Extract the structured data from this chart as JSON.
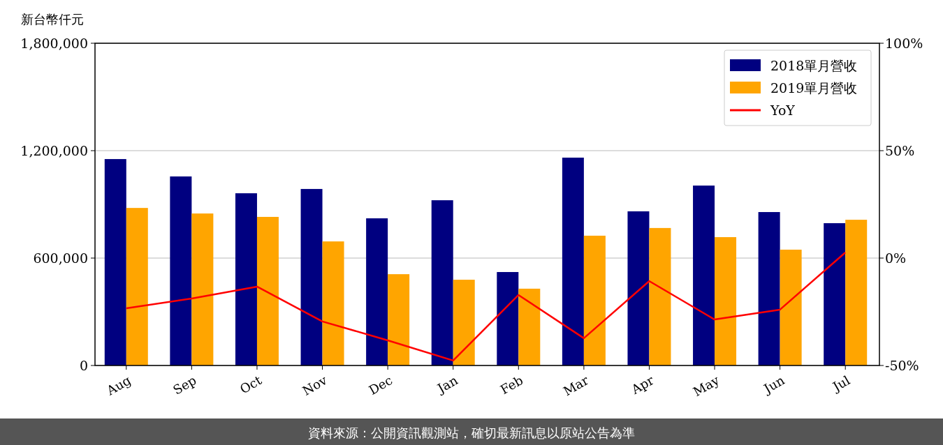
{
  "chart_data": {
    "type": "bar",
    "ylabel": "新台幣仟元",
    "categories": [
      "Aug",
      "Sep",
      "Oct",
      "Nov",
      "Dec",
      "Jan",
      "Feb",
      "Mar",
      "Apr",
      "May",
      "Jun",
      "Jul"
    ],
    "series": [
      {
        "name": "2018單月營收",
        "color": "#000080",
        "values": [
          1153000,
          1056000,
          962000,
          986000,
          822000,
          923000,
          522000,
          1161000,
          861000,
          1005000,
          857000,
          795000
        ]
      },
      {
        "name": "2019單月營收",
        "color": "#ffa500",
        "values": [
          880000,
          849000,
          830000,
          693000,
          510000,
          479000,
          429000,
          725000,
          768000,
          717000,
          647000,
          814000
        ]
      },
      {
        "name": "YoY",
        "type": "line",
        "axis": "y2",
        "color": "#ff0000",
        "values": [
          -23.4,
          -18.8,
          -13.3,
          -29.5,
          -38.3,
          -47.7,
          -17.2,
          -37.3,
          -10.7,
          -28.6,
          -24.0,
          2.6
        ]
      }
    ],
    "ylim": [
      0,
      1800000
    ],
    "yticks": [
      {
        "value": 0,
        "label": "0"
      },
      {
        "value": 600000,
        "label": "600,000"
      },
      {
        "value": 1200000,
        "label": "1,200,000"
      },
      {
        "value": 1800000,
        "label": "1,800,000"
      }
    ],
    "y2lim": [
      -50,
      100
    ],
    "y2ticks": [
      {
        "value": -50,
        "label": "-50%"
      },
      {
        "value": 0,
        "label": "0%"
      },
      {
        "value": 50,
        "label": "50%"
      },
      {
        "value": 100,
        "label": "100%"
      }
    ],
    "grid": "y",
    "legend": "top right",
    "annotations": [
      "資料來源：公開資訊觀測站，確切最新訊息以原站公告為準"
    ]
  }
}
